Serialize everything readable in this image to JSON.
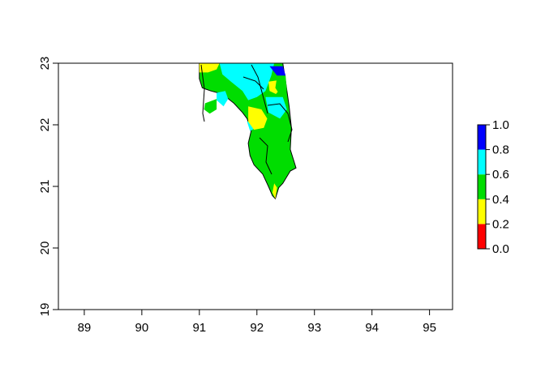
{
  "chart_data": {
    "type": "heatmap",
    "title": "",
    "xlabel": "",
    "ylabel": "",
    "xlim": [
      88.55,
      95.4
    ],
    "ylim": [
      19,
      23
    ],
    "x_ticks": [
      "89",
      "90",
      "91",
      "92",
      "93",
      "94",
      "95"
    ],
    "y_ticks": [
      "19",
      "20",
      "21",
      "22",
      "23"
    ],
    "legend": {
      "placement": "right",
      "breaks": [
        "0.0",
        "0.2",
        "0.4",
        "0.6",
        "0.8",
        "1.0"
      ],
      "colors": [
        "#ff0000",
        "#ffff00",
        "#00dd00",
        "#00ffff",
        "#0000ff"
      ]
    },
    "regions": [
      {
        "class": 2,
        "points": [
          [
            91.0,
            23.0
          ],
          [
            92.45,
            23.0
          ],
          [
            92.5,
            22.7
          ],
          [
            92.56,
            22.3
          ],
          [
            92.6,
            21.95
          ],
          [
            92.58,
            21.6
          ],
          [
            92.68,
            21.3
          ],
          [
            92.58,
            21.25
          ],
          [
            92.45,
            21.05
          ],
          [
            92.38,
            20.98
          ],
          [
            92.32,
            20.8
          ],
          [
            92.27,
            20.85
          ],
          [
            92.2,
            21.0
          ],
          [
            92.1,
            21.2
          ],
          [
            91.95,
            21.35
          ],
          [
            91.88,
            21.5
          ],
          [
            91.85,
            21.7
          ],
          [
            91.9,
            21.9
          ],
          [
            91.83,
            22.1
          ],
          [
            91.75,
            22.2
          ],
          [
            91.6,
            22.35
          ],
          [
            91.4,
            22.5
          ],
          [
            91.2,
            22.55
          ],
          [
            91.05,
            22.6
          ],
          [
            91.0,
            22.75
          ]
        ]
      },
      {
        "class": 3,
        "points": [
          [
            91.35,
            23.0
          ],
          [
            92.3,
            23.0
          ],
          [
            92.25,
            22.8
          ],
          [
            92.15,
            22.55
          ],
          [
            92.0,
            22.45
          ],
          [
            91.85,
            22.4
          ],
          [
            91.75,
            22.55
          ],
          [
            91.55,
            22.7
          ],
          [
            91.4,
            22.82
          ]
        ]
      },
      {
        "class": 3,
        "points": [
          [
            91.3,
            22.52
          ],
          [
            91.45,
            22.55
          ],
          [
            91.5,
            22.42
          ],
          [
            91.42,
            22.3
          ],
          [
            91.3,
            22.4
          ]
        ]
      },
      {
        "class": 3,
        "points": [
          [
            91.83,
            22.05
          ],
          [
            91.95,
            22.08
          ],
          [
            91.98,
            21.95
          ],
          [
            91.88,
            21.9
          ]
        ]
      },
      {
        "class": 1,
        "points": [
          [
            91.0,
            23.0
          ],
          [
            91.35,
            23.0
          ],
          [
            91.3,
            22.9
          ],
          [
            91.15,
            22.85
          ],
          [
            91.0,
            22.85
          ]
        ]
      },
      {
        "class": 1,
        "points": [
          [
            91.85,
            22.3
          ],
          [
            92.08,
            22.25
          ],
          [
            92.18,
            22.1
          ],
          [
            92.12,
            21.95
          ],
          [
            91.95,
            21.92
          ],
          [
            91.85,
            22.05
          ]
        ]
      },
      {
        "class": 1,
        "points": [
          [
            92.2,
            22.7
          ],
          [
            92.35,
            22.72
          ],
          [
            92.42,
            22.6
          ],
          [
            92.33,
            22.5
          ],
          [
            92.22,
            22.55
          ]
        ]
      },
      {
        "class": 1,
        "points": [
          [
            92.3,
            21.05
          ],
          [
            92.35,
            20.98
          ],
          [
            92.32,
            20.8
          ],
          [
            92.27,
            20.9
          ]
        ]
      },
      {
        "class": 2,
        "points": [
          [
            91.1,
            22.35
          ],
          [
            91.3,
            22.42
          ],
          [
            91.3,
            22.25
          ],
          [
            91.18,
            22.18
          ],
          [
            91.08,
            22.25
          ]
        ]
      },
      {
        "class": 3,
        "points": [
          [
            92.15,
            22.45
          ],
          [
            92.45,
            22.45
          ],
          [
            92.52,
            22.25
          ],
          [
            92.4,
            22.1
          ],
          [
            92.2,
            22.2
          ]
        ]
      },
      {
        "class": 2,
        "points": [
          [
            92.35,
            22.78
          ],
          [
            92.5,
            22.8
          ],
          [
            92.52,
            22.55
          ],
          [
            92.42,
            22.45
          ],
          [
            92.32,
            22.6
          ]
        ]
      },
      {
        "class": 4,
        "points": [
          [
            92.22,
            22.95
          ],
          [
            92.45,
            22.95
          ],
          [
            92.5,
            22.8
          ],
          [
            92.35,
            22.8
          ]
        ]
      }
    ]
  }
}
